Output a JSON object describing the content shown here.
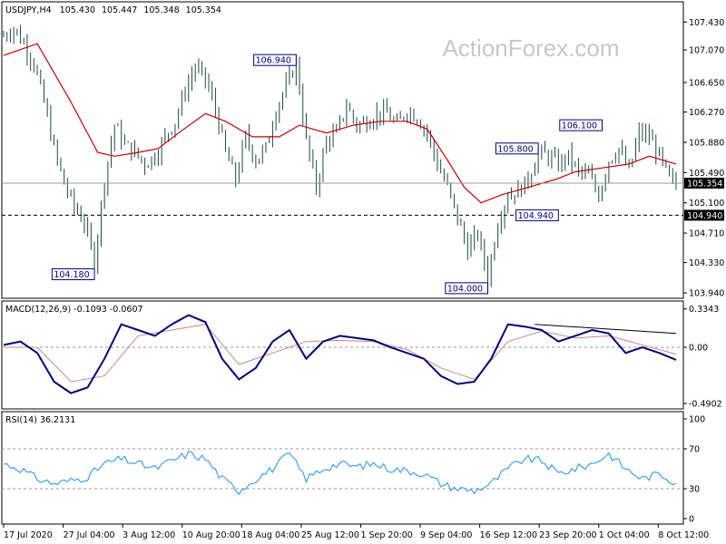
{
  "watermark": "ActionForex.com",
  "chart_data": {
    "type": "candlestick",
    "symbol_info": {
      "name": "USDJPY,H4",
      "open": "105.430",
      "high": "105.447",
      "low": "105.348",
      "close": "105.354"
    },
    "x_ticks": [
      "17 Jul 2020",
      "27 Jul 04:00",
      "3 Aug 12:00",
      "10 Aug 20:00",
      "18 Aug 04:00",
      "25 Aug 12:00",
      "1 Sep 20:00",
      "9 Sep 04:00",
      "16 Sep 12:00",
      "23 Sep 20:00",
      "1 Oct 04:00",
      "8 Oct 12:00"
    ],
    "price_panel": {
      "ylim": [
        103.94,
        107.62
      ],
      "y_ticks": [
        107.43,
        107.07,
        106.65,
        106.27,
        105.88,
        105.49,
        105.1,
        104.71,
        104.33,
        103.94
      ],
      "y_tick_labels": [
        "107.430",
        "107.070",
        "106.650",
        "106.270",
        "105.880",
        "105.490",
        "105.100",
        "104.710",
        "104.330",
        "103.940"
      ],
      "close_path": [
        [
          0,
          107.25
        ],
        [
          3,
          107.35
        ],
        [
          6,
          107.15
        ],
        [
          9,
          106.9
        ],
        [
          12,
          106.4
        ],
        [
          15,
          105.8
        ],
        [
          18,
          105.35
        ],
        [
          21,
          105.05
        ],
        [
          24,
          104.85
        ],
        [
          27,
          104.35
        ],
        [
          30,
          105.4
        ],
        [
          33,
          106.1
        ],
        [
          36,
          105.85
        ],
        [
          39,
          105.75
        ],
        [
          42,
          105.6
        ],
        [
          45,
          105.7
        ],
        [
          48,
          105.95
        ],
        [
          51,
          106.15
        ],
        [
          54,
          106.55
        ],
        [
          57,
          106.85
        ],
        [
          60,
          106.7
        ],
        [
          63,
          106.3
        ],
        [
          66,
          105.75
        ],
        [
          69,
          105.4
        ],
        [
          72,
          105.95
        ],
        [
          75,
          105.65
        ],
        [
          78,
          105.8
        ],
        [
          81,
          106.3
        ],
        [
          84,
          106.6
        ],
        [
          87,
          106.9
        ],
        [
          90,
          105.9
        ],
        [
          93,
          105.3
        ],
        [
          96,
          105.9
        ],
        [
          99,
          106.0
        ],
        [
          102,
          106.35
        ],
        [
          105,
          106.1
        ],
        [
          108,
          106.15
        ],
        [
          111,
          106.25
        ],
        [
          114,
          106.25
        ],
        [
          117,
          106.1
        ],
        [
          120,
          106.3
        ],
        [
          123,
          106.2
        ],
        [
          126,
          106.0
        ],
        [
          129,
          105.6
        ],
        [
          132,
          105.3
        ],
        [
          135,
          104.9
        ],
        [
          138,
          104.5
        ],
        [
          141,
          104.7
        ],
        [
          144,
          104.15
        ],
        [
          147,
          104.85
        ],
        [
          150,
          105.2
        ],
        [
          153,
          105.25
        ],
        [
          156,
          105.4
        ],
        [
          159,
          105.75
        ],
        [
          162,
          105.7
        ],
        [
          165,
          105.6
        ],
        [
          168,
          105.7
        ],
        [
          171,
          105.5
        ],
        [
          174,
          105.45
        ],
        [
          177,
          105.2
        ],
        [
          180,
          105.65
        ],
        [
          183,
          105.8
        ],
        [
          186,
          105.5
        ],
        [
          189,
          106.0
        ],
        [
          192,
          105.95
        ],
        [
          195,
          105.7
        ],
        [
          198,
          105.4
        ],
        [
          200,
          105.35
        ]
      ],
      "ma_path": [
        [
          0,
          107.0
        ],
        [
          10,
          107.15
        ],
        [
          20,
          106.4
        ],
        [
          28,
          105.75
        ],
        [
          33,
          105.7
        ],
        [
          40,
          105.75
        ],
        [
          46,
          105.8
        ],
        [
          52,
          106.0
        ],
        [
          60,
          106.25
        ],
        [
          66,
          106.15
        ],
        [
          74,
          105.95
        ],
        [
          82,
          105.95
        ],
        [
          88,
          106.1
        ],
        [
          96,
          106.0
        ],
        [
          104,
          106.1
        ],
        [
          112,
          106.15
        ],
        [
          120,
          106.15
        ],
        [
          126,
          106.05
        ],
        [
          132,
          105.65
        ],
        [
          137,
          105.3
        ],
        [
          142,
          105.1
        ],
        [
          148,
          105.2
        ],
        [
          156,
          105.3
        ],
        [
          164,
          105.4
        ],
        [
          170,
          105.5
        ],
        [
          178,
          105.55
        ],
        [
          186,
          105.6
        ],
        [
          192,
          105.7
        ],
        [
          200,
          105.6
        ]
      ],
      "ma_color": "#cc0000",
      "hlines": [
        {
          "value": 105.354,
          "label": "105.354",
          "style": "solid",
          "color": "#999999"
        },
        {
          "value": 104.94,
          "label": "104.940",
          "style": "dashed",
          "color": "#000000"
        }
      ],
      "annotations": [
        {
          "x": 27,
          "value": 104.18,
          "label": "104.180"
        },
        {
          "x": 87,
          "value": 106.94,
          "label": "106.940"
        },
        {
          "x": 144,
          "value": 104.0,
          "label": "104.000"
        },
        {
          "x": 159,
          "value": 105.8,
          "label": "105.800"
        },
        {
          "x": 165,
          "value": 104.94,
          "label": "104.940"
        },
        {
          "x": 178,
          "value": 106.1,
          "label": "106.100"
        }
      ]
    },
    "macd_panel": {
      "label": "MACD(12,26,9) -0.1093 -0.0607",
      "ylim": [
        -0.49,
        0.34
      ],
      "y_ticks": [
        0.3343,
        0.0,
        -0.4902
      ],
      "y_tick_labels": [
        "0.3343",
        "0.00",
        "-0.4902"
      ],
      "macd": [
        [
          0,
          0.02
        ],
        [
          5,
          0.05
        ],
        [
          10,
          -0.05
        ],
        [
          15,
          -0.3
        ],
        [
          20,
          -0.4
        ],
        [
          25,
          -0.35
        ],
        [
          30,
          -0.1
        ],
        [
          35,
          0.2
        ],
        [
          40,
          0.15
        ],
        [
          45,
          0.1
        ],
        [
          50,
          0.2
        ],
        [
          55,
          0.28
        ],
        [
          60,
          0.22
        ],
        [
          65,
          -0.1
        ],
        [
          70,
          -0.28
        ],
        [
          75,
          -0.18
        ],
        [
          80,
          0.05
        ],
        [
          85,
          0.15
        ],
        [
          90,
          -0.1
        ],
        [
          95,
          0.05
        ],
        [
          100,
          0.1
        ],
        [
          105,
          0.08
        ],
        [
          110,
          0.06
        ],
        [
          115,
          0.0
        ],
        [
          120,
          -0.05
        ],
        [
          125,
          -0.1
        ],
        [
          130,
          -0.25
        ],
        [
          135,
          -0.32
        ],
        [
          140,
          -0.3
        ],
        [
          145,
          -0.1
        ],
        [
          150,
          0.2
        ],
        [
          155,
          0.18
        ],
        [
          160,
          0.15
        ],
        [
          165,
          0.05
        ],
        [
          170,
          0.1
        ],
        [
          175,
          0.15
        ],
        [
          180,
          0.12
        ],
        [
          185,
          -0.05
        ],
        [
          190,
          0.0
        ],
        [
          195,
          -0.05
        ],
        [
          200,
          -0.11
        ]
      ],
      "signal": [
        [
          0,
          0.0
        ],
        [
          10,
          0.0
        ],
        [
          20,
          -0.3
        ],
        [
          30,
          -0.25
        ],
        [
          40,
          0.1
        ],
        [
          50,
          0.15
        ],
        [
          60,
          0.2
        ],
        [
          70,
          -0.15
        ],
        [
          80,
          -0.05
        ],
        [
          90,
          0.05
        ],
        [
          100,
          0.06
        ],
        [
          110,
          0.05
        ],
        [
          120,
          -0.02
        ],
        [
          130,
          -0.18
        ],
        [
          140,
          -0.28
        ],
        [
          150,
          0.05
        ],
        [
          160,
          0.14
        ],
        [
          170,
          0.08
        ],
        [
          180,
          0.1
        ],
        [
          190,
          0.02
        ],
        [
          200,
          -0.06
        ]
      ],
      "trendline": [
        [
          158,
          0.2
        ],
        [
          200,
          0.12
        ]
      ],
      "macd_color": "#000080",
      "signal_color": "#cc8888"
    },
    "rsi_panel": {
      "label": "RSI(14) 36.2131",
      "ylim": [
        0,
        100
      ],
      "y_ticks": [
        100,
        70,
        30,
        0
      ],
      "y_tick_labels": [
        "100",
        "70",
        "30",
        "0"
      ],
      "values": [
        [
          0,
          55
        ],
        [
          5,
          50
        ],
        [
          10,
          40
        ],
        [
          15,
          35
        ],
        [
          20,
          38
        ],
        [
          25,
          42
        ],
        [
          30,
          55
        ],
        [
          35,
          60
        ],
        [
          40,
          55
        ],
        [
          45,
          50
        ],
        [
          50,
          58
        ],
        [
          55,
          65
        ],
        [
          60,
          60
        ],
        [
          65,
          40
        ],
        [
          70,
          28
        ],
        [
          75,
          40
        ],
        [
          80,
          50
        ],
        [
          85,
          65
        ],
        [
          90,
          40
        ],
        [
          95,
          50
        ],
        [
          100,
          55
        ],
        [
          105,
          52
        ],
        [
          110,
          55
        ],
        [
          115,
          50
        ],
        [
          120,
          48
        ],
        [
          125,
          45
        ],
        [
          130,
          35
        ],
        [
          135,
          30
        ],
        [
          140,
          28
        ],
        [
          145,
          35
        ],
        [
          150,
          50
        ],
        [
          155,
          60
        ],
        [
          160,
          58
        ],
        [
          165,
          45
        ],
        [
          170,
          50
        ],
        [
          175,
          55
        ],
        [
          180,
          65
        ],
        [
          185,
          50
        ],
        [
          190,
          40
        ],
        [
          195,
          45
        ],
        [
          200,
          36
        ]
      ],
      "color": "#1e90ff",
      "levels": [
        70,
        30
      ]
    }
  }
}
